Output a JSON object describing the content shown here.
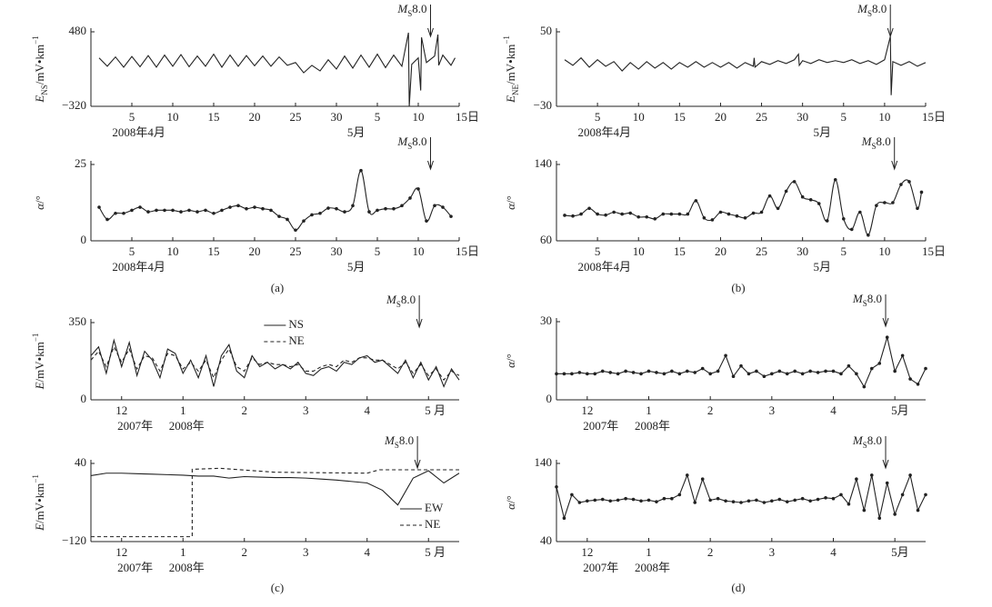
{
  "chart_data": [
    {
      "type": "line",
      "ylabel": {
        "italic": "E",
        "sub": "NS",
        "rest": "/mV•km",
        "sup": "−1"
      },
      "xlim": [
        0,
        45
      ],
      "xticks": [
        5,
        10,
        15,
        20,
        25,
        30,
        {
          "value": 35,
          "label": "5"
        },
        {
          "value": 40,
          "label": "10"
        },
        {
          "value": 45,
          "label": "15日"
        }
      ],
      "x_groups": [
        "2008年4月",
        "5月"
      ],
      "ylim": [
        -320,
        480
      ],
      "yticks": [
        {
          "value": -320,
          "label": "−320"
        },
        480
      ],
      "annotation": {
        "italic": "M",
        "sub": "S",
        "rest": "8.0",
        "x": 41.5
      },
      "x": [
        1,
        2,
        3,
        4,
        5,
        6,
        7,
        8,
        9,
        10,
        11,
        12,
        13,
        14,
        15,
        16,
        17,
        18,
        19,
        20,
        21,
        22,
        23,
        24,
        25,
        26,
        27,
        28,
        29,
        30,
        31,
        32,
        33,
        34,
        35,
        36,
        37,
        38,
        38.8,
        38.9,
        39.2,
        40,
        40.3,
        40.4,
        41,
        42,
        42.4,
        42.5,
        43,
        44,
        44.5
      ],
      "series": [
        {
          "color": "#222",
          "values": [
            200,
            110,
            210,
            100,
            215,
            105,
            225,
            100,
            230,
            110,
            235,
            105,
            220,
            110,
            240,
            100,
            230,
            110,
            225,
            115,
            220,
            110,
            210,
            120,
            150,
            40,
            120,
            60,
            180,
            80,
            220,
            90,
            230,
            100,
            240,
            95,
            230,
            110,
            470,
            -320,
            130,
            200,
            -150,
            420,
            150,
            220,
            450,
            120,
            230,
            120,
            200
          ]
        }
      ]
    },
    {
      "type": "line",
      "smooth": true,
      "markers": true,
      "ylabel": {
        "italic": "α",
        "rest": "/°"
      },
      "xlim": [
        0,
        45
      ],
      "xticks": [
        5,
        10,
        15,
        20,
        25,
        30,
        {
          "value": 35,
          "label": "5"
        },
        {
          "value": 40,
          "label": "10"
        },
        {
          "value": 45,
          "label": "15日"
        }
      ],
      "x_groups": [
        "2008年4月",
        "5月"
      ],
      "ylim": [
        0,
        25
      ],
      "yticks": [
        0,
        25
      ],
      "annotation": {
        "italic": "M",
        "sub": "S",
        "rest": "8.0",
        "x": 41.5
      },
      "x": [
        1,
        2,
        3,
        4,
        5,
        6,
        7,
        8,
        9,
        10,
        11,
        12,
        13,
        14,
        15,
        16,
        17,
        18,
        19,
        20,
        21,
        22,
        23,
        24,
        25,
        26,
        27,
        28,
        29,
        30,
        31,
        32,
        33,
        34,
        35,
        36,
        37,
        38,
        39,
        40,
        41,
        42,
        43,
        44
      ],
      "series": [
        {
          "color": "#222",
          "values": [
            11,
            7,
            9,
            9,
            10,
            11,
            9.5,
            10,
            10,
            10,
            9.5,
            10,
            9.5,
            10,
            9,
            10,
            11,
            11.5,
            10.5,
            11,
            10.5,
            10,
            8,
            7,
            3.5,
            6.5,
            8.5,
            9,
            10.7,
            10.5,
            9.5,
            11.5,
            23,
            9.5,
            10,
            10.5,
            10.5,
            11.5,
            14,
            17,
            6.5,
            11.5,
            11,
            8
          ]
        }
      ],
      "caption": "(a)"
    },
    {
      "type": "line",
      "ylabel": {
        "italic": "E",
        "sub": "NE",
        "rest": "/mV•km",
        "sup": "−1"
      },
      "xlim": [
        0,
        45
      ],
      "xticks": [
        5,
        10,
        15,
        20,
        25,
        30,
        {
          "value": 35,
          "label": "5"
        },
        {
          "value": 40,
          "label": "10"
        },
        {
          "value": 45,
          "label": "15日"
        }
      ],
      "x_groups": [
        "2008年4月",
        "5月"
      ],
      "ylim": [
        -30,
        50
      ],
      "yticks": [
        {
          "value": -30,
          "label": "−30"
        },
        50
      ],
      "annotation": {
        "italic": "M",
        "sub": "S",
        "rest": "8.0",
        "x": 40.7
      },
      "x": [
        1,
        2,
        3,
        4,
        5,
        6,
        7,
        8,
        9,
        10,
        11,
        12,
        13,
        14,
        15,
        16,
        17,
        18,
        19,
        20,
        21,
        22,
        23,
        24,
        24.1,
        24.2,
        25,
        26,
        27,
        28,
        29,
        29.5,
        29.6,
        30,
        31,
        32,
        33,
        34,
        35,
        36,
        37,
        38,
        39,
        40,
        40.7,
        40.8,
        41,
        42,
        43,
        44,
        45
      ],
      "series": [
        {
          "color": "#222",
          "values": [
            20,
            14,
            22,
            12,
            20,
            13,
            18,
            8,
            17,
            10,
            18,
            11,
            17,
            10,
            17,
            12,
            18,
            12,
            17,
            12,
            17,
            11,
            17,
            13,
            22,
            12,
            18,
            15,
            19,
            16,
            20,
            26,
            14,
            19,
            16,
            20,
            17,
            19,
            17,
            20,
            16,
            19,
            15,
            20,
            45,
            -18,
            18,
            14,
            18,
            13,
            17
          ]
        }
      ]
    },
    {
      "type": "line",
      "smooth": true,
      "markers": true,
      "ylabel": {
        "italic": "α",
        "rest": "/°"
      },
      "xlim": [
        0,
        45
      ],
      "xticks": [
        5,
        10,
        15,
        20,
        25,
        30,
        {
          "value": 35,
          "label": "5"
        },
        {
          "value": 40,
          "label": "10"
        },
        {
          "value": 45,
          "label": "15日"
        }
      ],
      "x_groups": [
        "2008年4月",
        "5月"
      ],
      "ylim": [
        60,
        140
      ],
      "yticks": [
        60,
        140
      ],
      "annotation": {
        "italic": "M",
        "sub": "S",
        "rest": "8.0",
        "x": 41.2
      },
      "x": [
        1,
        2,
        3,
        4,
        5,
        6,
        7,
        8,
        9,
        10,
        11,
        12,
        13,
        14,
        15,
        16,
        17,
        18,
        19,
        20,
        21,
        22,
        23,
        24,
        25,
        26,
        27,
        28,
        29,
        30,
        31,
        32,
        33,
        34,
        35,
        36,
        37,
        38,
        39,
        40,
        41,
        42,
        43,
        44,
        44.5
      ],
      "series": [
        {
          "color": "#222",
          "values": [
            86.7,
            86,
            88,
            94,
            88,
            87,
            90,
            88,
            89,
            85,
            85,
            83,
            88,
            88,
            88,
            88,
            102,
            84,
            82,
            90,
            88,
            86,
            84,
            89,
            90,
            107,
            94,
            112,
            122,
            106,
            103,
            99,
            81,
            124,
            83,
            72,
            90,
            66,
            97,
            100,
            100,
            119,
            122,
            94,
            111
          ]
        }
      ],
      "caption": "(b)"
    },
    {
      "type": "line",
      "ylabel": {
        "italic": "E",
        "rest": "/mV•km",
        "sup": "−1"
      },
      "xlim": [
        -0.5,
        5.5
      ],
      "xticks": [
        {
          "value": 0,
          "label": "12"
        },
        1,
        2,
        3,
        4,
        {
          "value": 5,
          "label": "5 月"
        }
      ],
      "x_groups": [
        "2007年",
        "2008年"
      ],
      "ylim": [
        0,
        350
      ],
      "yticks": [
        0,
        350
      ],
      "legend": "upper center",
      "annotation": {
        "italic": "M",
        "sub": "S",
        "rest": "8.0",
        "x": 4.85
      },
      "x": [
        -0.5,
        -0.375,
        -0.25,
        -0.125,
        0,
        0.125,
        0.25,
        0.375,
        0.5,
        0.625,
        0.75,
        0.875,
        1,
        1.125,
        1.25,
        1.375,
        1.5,
        1.625,
        1.75,
        1.875,
        2,
        2.125,
        2.25,
        2.375,
        2.5,
        2.625,
        2.75,
        2.875,
        3,
        3.125,
        3.25,
        3.375,
        3.5,
        3.625,
        3.75,
        3.875,
        4,
        4.125,
        4.25,
        4.375,
        4.5,
        4.625,
        4.75,
        4.875,
        5,
        5.125,
        5.25,
        5.375,
        5.5
      ],
      "series": [
        {
          "name": "NS",
          "color": "#222",
          "values": [
            200,
            240,
            120,
            270,
            150,
            260,
            110,
            220,
            180,
            100,
            230,
            210,
            120,
            180,
            100,
            200,
            60,
            200,
            250,
            130,
            100,
            200,
            150,
            170,
            140,
            160,
            140,
            170,
            120,
            110,
            140,
            150,
            130,
            170,
            160,
            190,
            200,
            170,
            180,
            150,
            120,
            180,
            100,
            170,
            90,
            150,
            60,
            140,
            90
          ]
        },
        {
          "name": "NE",
          "color": "#222",
          "dash": true,
          "values": [
            180,
            220,
            150,
            240,
            170,
            230,
            140,
            200,
            190,
            130,
            210,
            200,
            140,
            170,
            130,
            180,
            100,
            180,
            230,
            150,
            130,
            190,
            160,
            170,
            160,
            160,
            150,
            160,
            130,
            130,
            150,
            160,
            150,
            180,
            170,
            190,
            190,
            180,
            180,
            160,
            140,
            170,
            120,
            160,
            110,
            140,
            90,
            130,
            110
          ]
        }
      ]
    },
    {
      "type": "line",
      "ylabel": {
        "italic": "E",
        "rest": "/mV•km",
        "sup": "−1"
      },
      "xlim": [
        -0.5,
        5.5
      ],
      "xticks": [
        {
          "value": 0,
          "label": "12"
        },
        1,
        2,
        3,
        4,
        {
          "value": 5,
          "label": "5 月"
        }
      ],
      "x_groups": [
        "2007年",
        "2008年"
      ],
      "ylim": [
        -120,
        40
      ],
      "yticks": [
        {
          "value": -120,
          "label": "−120"
        },
        40
      ],
      "legend": "lower right",
      "annotation": {
        "italic": "M",
        "sub": "S",
        "rest": "8.0",
        "x": 4.82
      },
      "series": [
        {
          "name": "EW",
          "color": "#222",
          "x": [
            -0.5,
            -0.25,
            0,
            0.25,
            0.5,
            0.75,
            1,
            1.25,
            1.5,
            1.75,
            2,
            2.25,
            2.5,
            2.75,
            3,
            3.25,
            3.5,
            3.75,
            4,
            4.25,
            4.5,
            4.75,
            5,
            5.25,
            5.5
          ],
          "values": [
            15,
            20,
            20,
            19,
            18,
            17,
            16,
            14,
            14,
            10,
            13,
            12,
            11,
            11,
            10,
            8,
            6,
            3,
            0,
            -15,
            -45,
            10,
            25,
            0,
            20
          ]
        },
        {
          "name": "NE",
          "color": "#222",
          "dash": true,
          "x": [
            -0.5,
            1.15,
            1.15,
            1.6,
            2.5,
            4,
            4.2,
            5.5
          ],
          "values": [
            -110,
            -110,
            28,
            30,
            22,
            20,
            27,
            27
          ]
        }
      ],
      "caption": "(c)"
    },
    {
      "type": "line",
      "markers": true,
      "ylabel": {
        "italic": "α",
        "rest": "/°"
      },
      "xlim": [
        -0.5,
        5.5
      ],
      "xticks": [
        {
          "value": 0,
          "label": "12"
        },
        1,
        2,
        3,
        4,
        {
          "value": 5,
          "label": "5月"
        }
      ],
      "x_groups": [
        "2007年",
        "2008年"
      ],
      "ylim": [
        0,
        30
      ],
      "yticks": [
        0,
        30
      ],
      "annotation": {
        "italic": "M",
        "sub": "S",
        "rest": "8.0",
        "x": 4.85
      },
      "x": [
        -0.5,
        -0.375,
        -0.25,
        -0.125,
        0,
        0.125,
        0.25,
        0.375,
        0.5,
        0.625,
        0.75,
        0.875,
        1,
        1.125,
        1.25,
        1.375,
        1.5,
        1.625,
        1.75,
        1.875,
        2,
        2.125,
        2.25,
        2.375,
        2.5,
        2.625,
        2.75,
        2.875,
        3,
        3.125,
        3.25,
        3.375,
        3.5,
        3.625,
        3.75,
        3.875,
        4,
        4.125,
        4.25,
        4.375,
        4.5,
        4.625,
        4.75,
        4.875,
        5,
        5.125,
        5.25,
        5.375,
        5.5
      ],
      "series": [
        {
          "color": "#222",
          "values": [
            10,
            10,
            10,
            10.5,
            10,
            10,
            11,
            10.5,
            10,
            11,
            10.5,
            10,
            11,
            10.5,
            10,
            11,
            10,
            11,
            10.5,
            12,
            10,
            11,
            17,
            9,
            13,
            10,
            11,
            9,
            10,
            11,
            10,
            11,
            10,
            11,
            10.5,
            11,
            11,
            10,
            13,
            10,
            5,
            12,
            14,
            24,
            11,
            17,
            8,
            6,
            12
          ]
        }
      ]
    },
    {
      "type": "line",
      "markers": true,
      "ylabel": {
        "italic": "α",
        "rest": "/°"
      },
      "xlim": [
        -0.5,
        5.5
      ],
      "xticks": [
        {
          "value": 0,
          "label": "12"
        },
        1,
        2,
        3,
        4,
        {
          "value": 5,
          "label": "5月"
        }
      ],
      "x_groups": [
        "2007年",
        "2008年"
      ],
      "ylim": [
        40,
        140
      ],
      "yticks": [
        40,
        140
      ],
      "annotation": {
        "italic": "M",
        "sub": "S",
        "rest": "8.0",
        "x": 4.85
      },
      "x": [
        -0.5,
        -0.375,
        -0.25,
        -0.125,
        0,
        0.125,
        0.25,
        0.375,
        0.5,
        0.625,
        0.75,
        0.875,
        1,
        1.125,
        1.25,
        1.375,
        1.5,
        1.625,
        1.75,
        1.875,
        2,
        2.125,
        2.25,
        2.375,
        2.5,
        2.625,
        2.75,
        2.875,
        3,
        3.125,
        3.25,
        3.375,
        3.5,
        3.625,
        3.75,
        3.875,
        4,
        4.125,
        4.25,
        4.375,
        4.5,
        4.625,
        4.75,
        4.875,
        5,
        5.125,
        5.25,
        5.375,
        5.5
      ],
      "series": [
        {
          "color": "#222",
          "values": [
            110,
            70,
            100,
            90,
            92,
            93,
            94,
            92,
            93,
            95,
            94,
            92,
            93,
            91,
            95,
            95,
            100,
            125,
            90,
            120,
            93,
            95,
            92,
            91,
            90,
            92,
            93,
            90,
            92,
            94,
            91,
            93,
            95,
            92,
            94,
            96,
            95,
            100,
            88,
            120,
            80,
            125,
            70,
            115,
            75,
            100,
            125,
            80,
            100
          ]
        }
      ],
      "caption": "(d)"
    }
  ]
}
